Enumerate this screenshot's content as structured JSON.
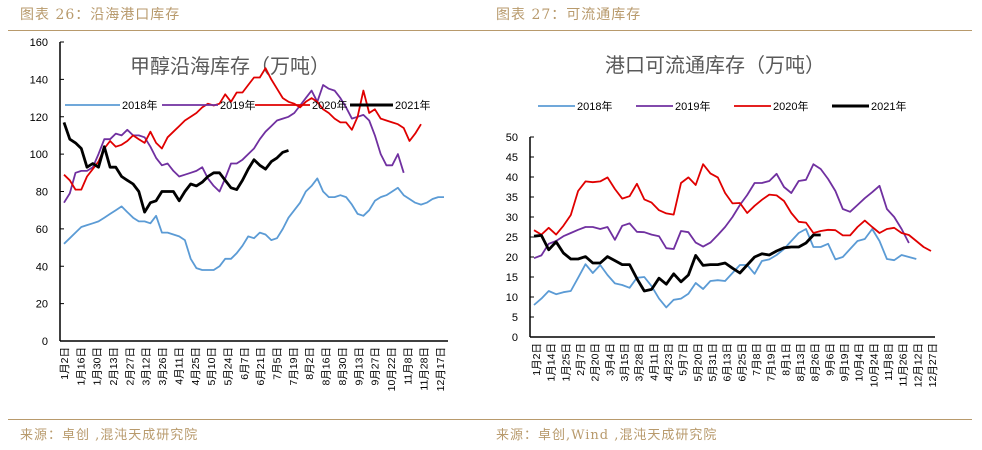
{
  "figures": [
    {
      "label": "图表 26：沿海港口库存",
      "source": "来源：卓创 ,混沌天成研究院"
    },
    {
      "label": "图表 27：可流通库存",
      "source": "来源：卓创,Wind ,混沌天成研究院"
    }
  ],
  "colors": {
    "2018": "#5b9bd5",
    "2019": "#7030a0",
    "2020": "#e00000",
    "2021": "#000000",
    "accent": "#b89a6c"
  },
  "chart_data": [
    {
      "type": "line",
      "title": "甲醇沿海库存（万吨）",
      "xlabel": "",
      "ylabel": "",
      "ylim": [
        0,
        160
      ],
      "yticks": [
        0,
        20,
        40,
        60,
        80,
        100,
        120,
        140,
        160
      ],
      "grid": false,
      "legend": "top",
      "categories": [
        "1月2日",
        "1月16日",
        "1月30日",
        "2月13日",
        "2月27日",
        "3月12日",
        "3月26日",
        "4月11日",
        "4月25日",
        "5月10日",
        "5月24日",
        "6月7日",
        "6月21日",
        "7月5日",
        "7月19日",
        "8月2日",
        "8月16日",
        "8月30日",
        "9月13日",
        "9月27日",
        "10月22日",
        "11月8日",
        "11月28日",
        "12月17日"
      ],
      "n_points": 48,
      "series": [
        {
          "name": "2018年",
          "key": "2018",
          "values": [
            52,
            55,
            58,
            61,
            62,
            63,
            64,
            66,
            68,
            70,
            72,
            69,
            66,
            64,
            64,
            63,
            67,
            58,
            58,
            57,
            56,
            54,
            44,
            39,
            38,
            38,
            38,
            40,
            44,
            44,
            47,
            51,
            56,
            55,
            58,
            57,
            54,
            55,
            60,
            66,
            70,
            74,
            80,
            83,
            87,
            80,
            77,
            77,
            78,
            77,
            73,
            68,
            67,
            70,
            75,
            77,
            78,
            80,
            82,
            78,
            76,
            74,
            73,
            74,
            76,
            77,
            77
          ]
        },
        {
          "name": "2019年",
          "key": "2019",
          "values": [
            74,
            79,
            90,
            91,
            91,
            93,
            100,
            108,
            108,
            111,
            110,
            113,
            110,
            110,
            109,
            104,
            98,
            94,
            95,
            91,
            88,
            89,
            90,
            91,
            93,
            87,
            83,
            80,
            87,
            95,
            95,
            97,
            100,
            103,
            108,
            112,
            115,
            118,
            119,
            120,
            122,
            126,
            130,
            134,
            128,
            137,
            135,
            134,
            130,
            125,
            119,
            120,
            121,
            118,
            110,
            100,
            94,
            94,
            100,
            90
          ]
        },
        {
          "name": "2020年",
          "key": "2020",
          "values": [
            89,
            86,
            81,
            81,
            88,
            92,
            96,
            103,
            107,
            104,
            105,
            107,
            110,
            108,
            106,
            112,
            106,
            103,
            109,
            112,
            115,
            118,
            120,
            122,
            125,
            127,
            126,
            127,
            132,
            128,
            133,
            133,
            137,
            141,
            141,
            146,
            140,
            135,
            130,
            128,
            127,
            125,
            128,
            130,
            128,
            124,
            122,
            119,
            117,
            117,
            113,
            120,
            134,
            122,
            124,
            119,
            118,
            117,
            116,
            114,
            107,
            111,
            116
          ]
        },
        {
          "name": "2021年",
          "key": "2021",
          "values": [
            117,
            108,
            106,
            103,
            93,
            95,
            93,
            104,
            93,
            93,
            88,
            86,
            84,
            80,
            69,
            74,
            75,
            80,
            80,
            80,
            75,
            80,
            84,
            83,
            85,
            88,
            90,
            90,
            86,
            82,
            81,
            86,
            92,
            97,
            94,
            92,
            96,
            98,
            101,
            102
          ]
        }
      ]
    },
    {
      "type": "line",
      "title": "港口可流通库存（万吨）",
      "xlabel": "",
      "ylabel": "",
      "ylim": [
        0,
        50
      ],
      "yticks": [
        0,
        5,
        10,
        15,
        20,
        25,
        30,
        35,
        40,
        45,
        50
      ],
      "grid": false,
      "legend": "top",
      "categories": [
        "1月2日",
        "1月14日",
        "1月25日",
        "2月7日",
        "2月20日",
        "3月4日",
        "3月15日",
        "3月28日",
        "4月11日",
        "4月23日",
        "5月7日",
        "5月20日",
        "5月31日",
        "6月13日",
        "6月25日",
        "7月8日",
        "7月19日",
        "8月1日",
        "8月13日",
        "8月26日",
        "9月6日",
        "9月19日",
        "10月4日",
        "10月24日",
        "11月8日",
        "11月26日",
        "12月12日",
        "12月27日"
      ],
      "series": [
        {
          "name": "2018年",
          "key": "2018",
          "values": [
            8,
            9.6,
            11.5,
            10.7,
            11.2,
            11.5,
            14.8,
            18.2,
            16,
            18,
            15.5,
            13.4,
            13,
            12.3,
            14.8,
            15,
            12.7,
            9.6,
            7.4,
            9.3,
            9.6,
            10.8,
            13.5,
            12,
            14,
            14.2,
            14,
            16,
            18,
            18,
            15.8,
            19,
            19.4,
            20.5,
            22,
            24,
            26,
            27,
            22.5,
            22.5,
            23.3,
            19.4,
            20,
            22,
            24,
            24.5,
            27,
            24,
            19.5,
            19.2,
            20.5,
            20,
            19.5
          ]
        },
        {
          "name": "2019年",
          "key": "2019",
          "values": [
            19.7,
            20.4,
            23.3,
            24,
            25.2,
            26,
            26.8,
            27.5,
            27.5,
            27,
            27.5,
            24.3,
            27.8,
            28.4,
            26.3,
            26.2,
            25.6,
            25.2,
            22.2,
            22,
            26.5,
            26.2,
            23.6,
            22.6,
            23.6,
            25.5,
            27.5,
            30,
            33,
            35.5,
            38.5,
            38.5,
            39,
            40.8,
            37.5,
            36,
            39,
            39.3,
            43.2,
            42,
            39.5,
            36.5,
            32,
            31.3,
            33,
            34.7,
            36.2,
            37.8,
            32,
            30,
            27,
            23.5
          ]
        },
        {
          "name": "2020年",
          "key": "2020",
          "values": [
            26.7,
            25.6,
            27.3,
            25.6,
            27.8,
            30.5,
            36.5,
            38.9,
            38.7,
            38.9,
            39.9,
            37,
            34.6,
            35.2,
            38.3,
            34.4,
            33.6,
            31.7,
            30.9,
            30.6,
            38.5,
            39.9,
            38,
            43.2,
            40.9,
            39.9,
            36,
            33.4,
            33.5,
            31,
            32.8,
            34.3,
            35.6,
            35.4,
            34,
            31,
            28.8,
            28.6,
            26,
            26.5,
            26.8,
            26.7,
            25.4,
            25.4,
            27.5,
            29.1,
            27.5,
            26,
            27,
            27.3,
            26,
            25.5,
            24,
            22.5,
            21.5
          ]
        },
        {
          "name": "2021年",
          "key": "2021",
          "values": [
            25.2,
            25.4,
            21.8,
            23.8,
            21,
            19.5,
            19.5,
            20.1,
            18.5,
            18.5,
            20.1,
            19.1,
            18.1,
            18.1,
            14.6,
            11.5,
            11.9,
            14.7,
            13.2,
            15.8,
            13.8,
            15.5,
            20.4,
            17.9,
            18.1,
            18.1,
            18.5,
            17.2,
            16,
            18,
            20,
            20.8,
            20.5,
            21.5,
            22.3,
            22.5,
            22.5,
            23.5,
            25.5,
            25.5
          ]
        }
      ]
    }
  ]
}
